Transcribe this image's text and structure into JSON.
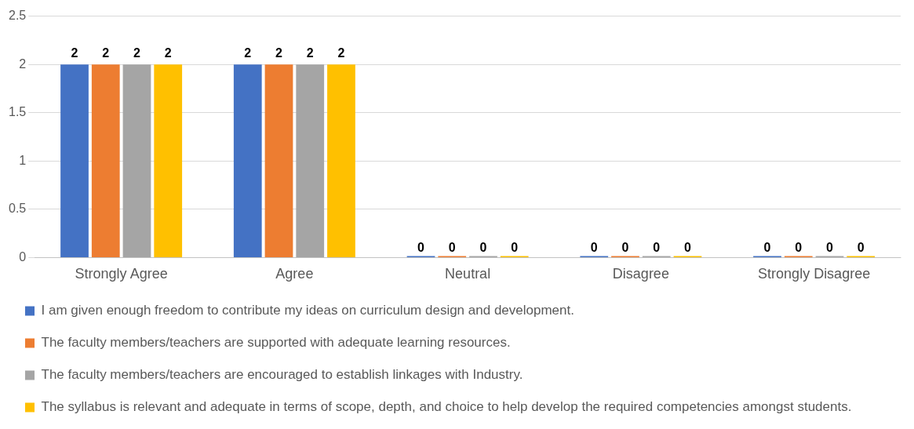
{
  "chart_data": {
    "type": "bar",
    "categories": [
      "Strongly Agree",
      "Agree",
      "Neutral",
      "Disagree",
      "Strongly Disagree"
    ],
    "series": [
      {
        "name": "I am given enough freedom to contribute my ideas on curriculum design and development.",
        "color": "#4472c4",
        "values": [
          2,
          2,
          0,
          0,
          0
        ]
      },
      {
        "name": "The faculty members/teachers are supported with adequate learning resources.",
        "color": "#ed7d31",
        "values": [
          2,
          2,
          0,
          0,
          0
        ]
      },
      {
        "name": "The faculty members/teachers are encouraged to establish linkages with Industry.",
        "color": "#a5a5a5",
        "values": [
          2,
          2,
          0,
          0,
          0
        ]
      },
      {
        "name": "The syllabus is relevant and adequate in terms of scope, depth, and choice to help develop the required competencies amongst students.",
        "color": "#ffc000",
        "values": [
          2,
          2,
          0,
          0,
          0
        ]
      }
    ],
    "ylim": [
      0,
      2.5
    ],
    "yticks": [
      0,
      0.5,
      1,
      1.5,
      2,
      2.5
    ],
    "grid": "y",
    "legend": "bottom",
    "data_labels": true
  }
}
